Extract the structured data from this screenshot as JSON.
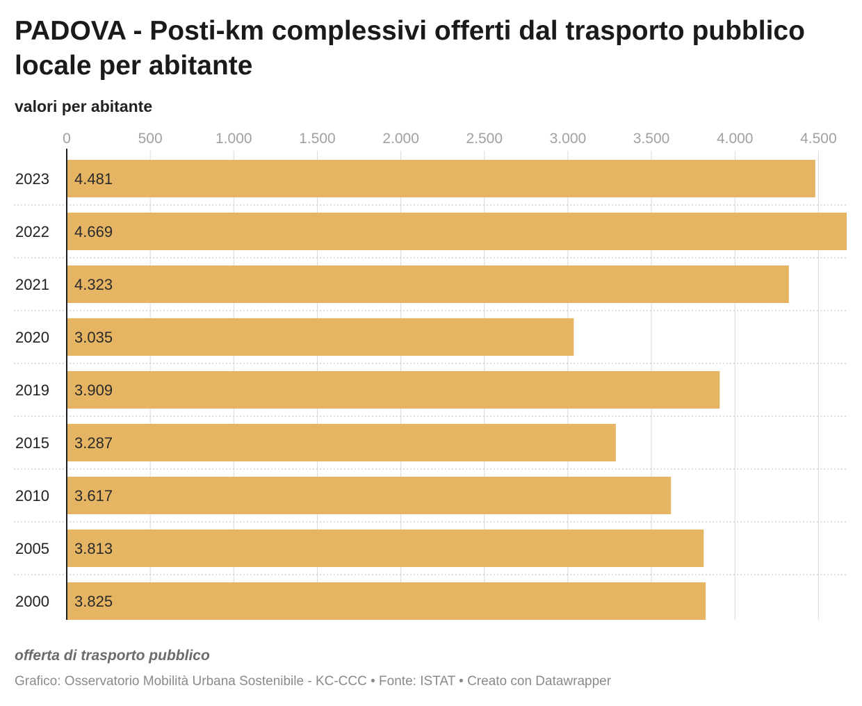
{
  "header": {
    "title": "PADOVA - Posti-km complessivi offerti dal trasporto pubblico locale per abitante",
    "subtitle": "valori per abitante"
  },
  "footer": {
    "note": "offerta di trasporto pubblico",
    "credits": "Grafico: Osservatorio Mobilità Urbana Sostenibile - KC-CCC • Fonte: ISTAT • Creato con Datawrapper"
  },
  "colors": {
    "bar": "#e6b564",
    "axis": "#1a1a1a",
    "grid": "#d9d9d9",
    "tick_text": "#a0a0a0"
  },
  "chart_data": {
    "type": "bar",
    "orientation": "horizontal",
    "title": "PADOVA - Posti-km complessivi offerti dal trasporto pubblico locale per abitante",
    "subtitle": "valori per abitante",
    "categories": [
      "2023",
      "2022",
      "2021",
      "2020",
      "2019",
      "2015",
      "2010",
      "2005",
      "2000"
    ],
    "values": [
      4481,
      4669,
      4323,
      3035,
      3909,
      3287,
      3617,
      3813,
      3825
    ],
    "value_labels": [
      "4.481",
      "4.669",
      "4.323",
      "3.035",
      "3.909",
      "3.287",
      "3.617",
      "3.813",
      "3.825"
    ],
    "x_ticks": [
      0,
      500,
      1000,
      1500,
      2000,
      2500,
      3000,
      3500,
      4000,
      4500
    ],
    "x_tick_labels": [
      "0",
      "500",
      "1.000",
      "1.500",
      "2.000",
      "2.500",
      "3.000",
      "3.500",
      "4.000",
      "4.500"
    ],
    "xlim": [
      0,
      4669
    ],
    "grid": true
  }
}
